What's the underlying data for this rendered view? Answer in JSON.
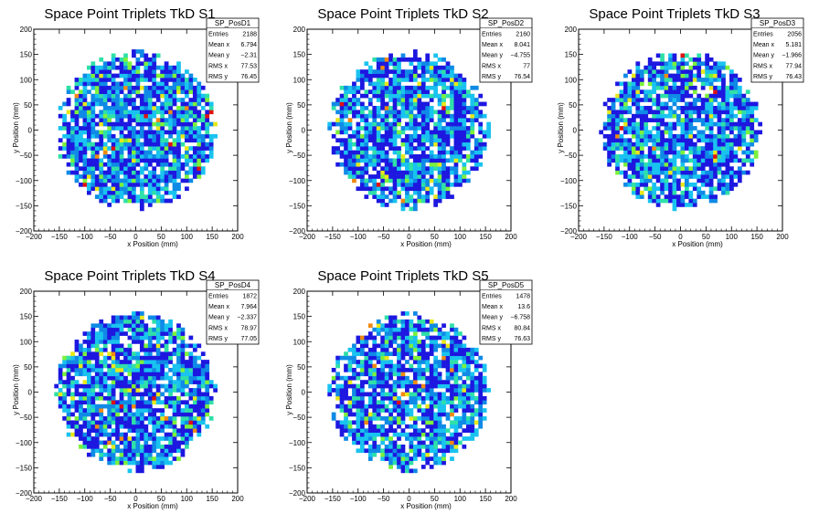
{
  "palette": [
    "#1d17e0",
    "#0f8ae6",
    "#19c3f0",
    "#2fe0a8",
    "#7cf23a",
    "#e8e81a",
    "#f08a12",
    "#e01212"
  ],
  "chart_data": [
    {
      "type": "heatmap",
      "title": "Space Point Triplets TkD S1",
      "xlabel": "x Position (mm)",
      "ylabel": "y Position (mm)",
      "xlim": [
        -200,
        200
      ],
      "ylim": [
        -200,
        200
      ],
      "xticks": [
        "−200",
        "−150",
        "−100",
        "−50",
        "0",
        "50",
        "100",
        "150",
        "200"
      ],
      "yticks": [
        "−200",
        "−150",
        "−100",
        "−50",
        "0",
        "50",
        "100",
        "150",
        "200"
      ],
      "radius": 157,
      "seed": 11,
      "stats": {
        "name": "SP_PosD1",
        "rows": [
          [
            "Entries",
            "2188"
          ],
          [
            "Mean x",
            "6.794"
          ],
          [
            "Mean y",
            "−2.31"
          ],
          [
            "RMS x",
            "77.53"
          ],
          [
            "RMS y",
            "76.45"
          ]
        ]
      }
    },
    {
      "type": "heatmap",
      "title": "Space Point Triplets TkD S2",
      "xlabel": "x Position (mm)",
      "ylabel": "y Position (mm)",
      "xlim": [
        -200,
        200
      ],
      "ylim": [
        -200,
        200
      ],
      "xticks": [
        "−200",
        "−150",
        "−100",
        "−50",
        "0",
        "50",
        "100",
        "150",
        "200"
      ],
      "yticks": [
        "−200",
        "−150",
        "−100",
        "−50",
        "0",
        "50",
        "100",
        "150",
        "200"
      ],
      "radius": 157,
      "seed": 23,
      "stats": {
        "name": "SP_PosD2",
        "rows": [
          [
            "Entries",
            "2160"
          ],
          [
            "Mean x",
            "8.041"
          ],
          [
            "Mean y",
            "−4.755"
          ],
          [
            "RMS x",
            "77"
          ],
          [
            "RMS y",
            "76.54"
          ]
        ]
      }
    },
    {
      "type": "heatmap",
      "title": "Space Point Triplets TkD S3",
      "xlabel": "x Position (mm)",
      "ylabel": "y Position (mm)",
      "xlim": [
        -200,
        200
      ],
      "ylim": [
        -200,
        200
      ],
      "xticks": [
        "−200",
        "−150",
        "−100",
        "−50",
        "0",
        "50",
        "100",
        "150",
        "200"
      ],
      "yticks": [
        "−200",
        "−150",
        "−100",
        "−50",
        "0",
        "50",
        "100",
        "150",
        "200"
      ],
      "radius": 157,
      "seed": 37,
      "stats": {
        "name": "SP_PosD3",
        "rows": [
          [
            "Entries",
            "2056"
          ],
          [
            "Mean x",
            "5.181"
          ],
          [
            "Mean y",
            "−1.966"
          ],
          [
            "RMS x",
            "77.94"
          ],
          [
            "RMS y",
            "76.43"
          ]
        ]
      }
    },
    {
      "type": "heatmap",
      "title": "Space Point Triplets TkD S4",
      "xlabel": "x Position (mm)",
      "ylabel": "y Position (mm)",
      "xlim": [
        -200,
        200
      ],
      "ylim": [
        -200,
        200
      ],
      "xticks": [
        "−200",
        "−150",
        "−100",
        "−50",
        "0",
        "50",
        "100",
        "150",
        "200"
      ],
      "yticks": [
        "−200",
        "−150",
        "−100",
        "−50",
        "0",
        "50",
        "100",
        "150",
        "200"
      ],
      "radius": 157,
      "seed": 41,
      "stats": {
        "name": "SP_PosD4",
        "rows": [
          [
            "Entries",
            "1872"
          ],
          [
            "Mean x",
            "7.964"
          ],
          [
            "Mean y",
            "−2.337"
          ],
          [
            "RMS x",
            "78.97"
          ],
          [
            "RMS y",
            "77.05"
          ]
        ]
      }
    },
    {
      "type": "heatmap",
      "title": "Space Point Triplets TkD S5",
      "xlabel": "x Position (mm)",
      "ylabel": "y Position (mm)",
      "xlim": [
        -200,
        200
      ],
      "ylim": [
        -200,
        200
      ],
      "xticks": [
        "−200",
        "−150",
        "−100",
        "−50",
        "0",
        "50",
        "100",
        "150",
        "200"
      ],
      "yticks": [
        "−200",
        "−150",
        "−100",
        "−50",
        "0",
        "50",
        "100",
        "150",
        "200"
      ],
      "radius": 157,
      "seed": 59,
      "stats": {
        "name": "SP_PosD5",
        "rows": [
          [
            "Entries",
            "1478"
          ],
          [
            "Mean x",
            "13.6"
          ],
          [
            "Mean y",
            "−6.758"
          ],
          [
            "RMS x",
            "80.84"
          ],
          [
            "RMS y",
            "76.63"
          ]
        ]
      }
    }
  ]
}
